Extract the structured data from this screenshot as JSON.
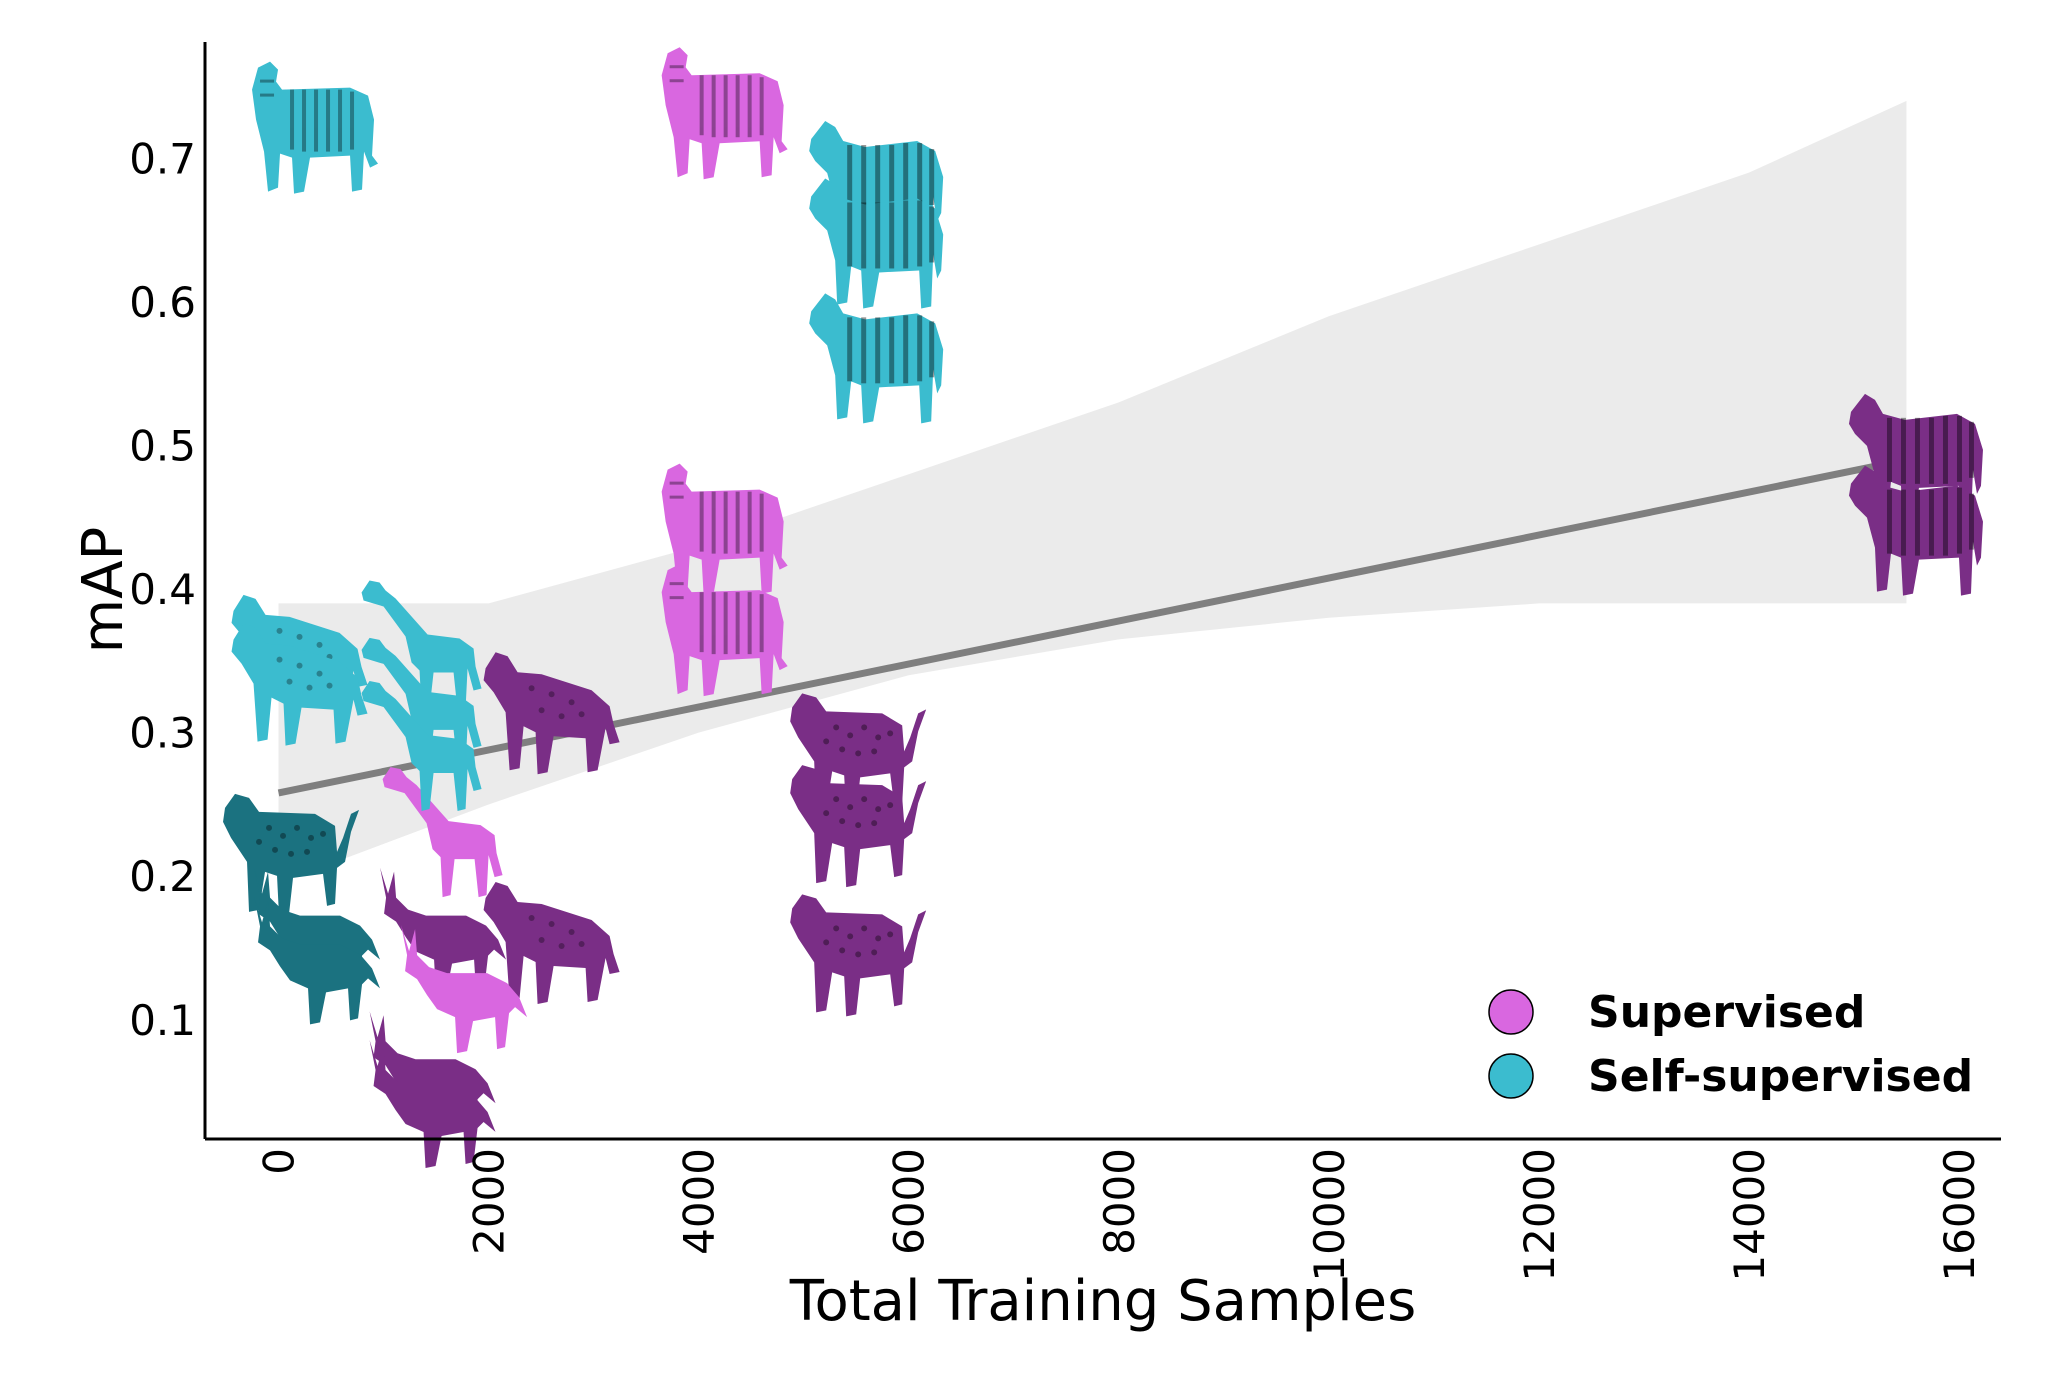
{
  "chart_data": {
    "type": "scatter",
    "title": "",
    "xlabel": "Total Training Samples",
    "ylabel": "mAP",
    "xlim": [
      -700,
      16400
    ],
    "ylim": [
      0.017,
      0.781
    ],
    "x_ticks": [
      0,
      2000,
      4000,
      6000,
      8000,
      10000,
      12000,
      14000,
      16000
    ],
    "x_tick_labels": [
      "0",
      "2000",
      "4000",
      "6000",
      "8000",
      "10000",
      "12000",
      "14000",
      "16000"
    ],
    "y_ticks": [
      0.1,
      0.2,
      0.3,
      0.4,
      0.5,
      0.6,
      0.7
    ],
    "y_tick_labels": [
      "0.1",
      "0.2",
      "0.3",
      "0.4",
      "0.5",
      "0.6",
      "0.7"
    ],
    "grid": false,
    "legend_position": "bottom-right",
    "colors": {
      "Supervised": "#d967e0",
      "Self-supervised": "#3bbccf",
      "Supervised_dark": "#7a2e86",
      "Self-supervised_dark": "#1b7280",
      "regression": "#7f7f7f",
      "confidence_band": "#ebebeb"
    },
    "series": [
      {
        "name": "Supervised",
        "points": [
          {
            "x": 4200,
            "y": 0.73,
            "icon": "tiger-icon",
            "tone": "light"
          },
          {
            "x": 4200,
            "y": 0.44,
            "icon": "tiger-icon",
            "tone": "light"
          },
          {
            "x": 4200,
            "y": 0.37,
            "icon": "tiger-icon",
            "tone": "light"
          },
          {
            "x": 15600,
            "y": 0.49,
            "icon": "zebra-icon",
            "tone": "dark"
          },
          {
            "x": 15600,
            "y": 0.44,
            "icon": "zebra-icon",
            "tone": "dark"
          },
          {
            "x": 5500,
            "y": 0.28,
            "icon": "leopard-icon",
            "tone": "dark"
          },
          {
            "x": 5500,
            "y": 0.23,
            "icon": "leopard-icon",
            "tone": "dark"
          },
          {
            "x": 5500,
            "y": 0.14,
            "icon": "leopard-icon",
            "tone": "dark"
          },
          {
            "x": 2600,
            "y": 0.31,
            "icon": "hyena-icon",
            "tone": "dark"
          },
          {
            "x": 2600,
            "y": 0.15,
            "icon": "hyena-icon",
            "tone": "dark"
          },
          {
            "x": 1600,
            "y": 0.23,
            "icon": "giraffe-icon",
            "tone": "light"
          },
          {
            "x": 1500,
            "y": 0.16,
            "icon": "antelope-icon",
            "tone": "dark"
          },
          {
            "x": 1700,
            "y": 0.12,
            "icon": "antelope-icon",
            "tone": "light"
          },
          {
            "x": 1400,
            "y": 0.06,
            "icon": "antelope-icon",
            "tone": "dark"
          },
          {
            "x": 1400,
            "y": 0.04,
            "icon": "antelope-icon",
            "tone": "dark"
          }
        ]
      },
      {
        "name": "Self-supervised",
        "points": [
          {
            "x": 300,
            "y": 0.72,
            "icon": "tiger-icon",
            "tone": "light"
          },
          {
            "x": 5700,
            "y": 0.68,
            "icon": "zebra-icon",
            "tone": "light"
          },
          {
            "x": 5700,
            "y": 0.64,
            "icon": "zebra-icon",
            "tone": "light"
          },
          {
            "x": 5700,
            "y": 0.56,
            "icon": "zebra-icon",
            "tone": "light"
          },
          {
            "x": 200,
            "y": 0.35,
            "icon": "hyena-icon",
            "tone": "light"
          },
          {
            "x": 200,
            "y": 0.33,
            "icon": "hyena-icon",
            "tone": "light"
          },
          {
            "x": 1400,
            "y": 0.36,
            "icon": "giraffe-icon",
            "tone": "light"
          },
          {
            "x": 1400,
            "y": 0.32,
            "icon": "giraffe-icon",
            "tone": "light"
          },
          {
            "x": 1400,
            "y": 0.29,
            "icon": "giraffe-icon",
            "tone": "light"
          },
          {
            "x": 100,
            "y": 0.21,
            "icon": "leopard-icon",
            "tone": "dark"
          },
          {
            "x": 300,
            "y": 0.16,
            "icon": "antelope-icon",
            "tone": "dark"
          },
          {
            "x": 300,
            "y": 0.14,
            "icon": "antelope-icon",
            "tone": "dark"
          }
        ]
      }
    ],
    "regression": {
      "x_start": 0,
      "x_end": 15500,
      "y_start": 0.258,
      "y_end": 0.49
    },
    "confidence_band": {
      "x": [
        0,
        2000,
        4000,
        6000,
        8000,
        10000,
        12000,
        14000,
        15500
      ],
      "upper": [
        0.39,
        0.39,
        0.43,
        0.48,
        0.53,
        0.59,
        0.64,
        0.69,
        0.74
      ],
      "lower": [
        0.195,
        0.25,
        0.3,
        0.34,
        0.365,
        0.38,
        0.39,
        0.39,
        0.39
      ]
    },
    "legend": [
      {
        "label": "Supervised",
        "color": "#d967e0"
      },
      {
        "label": "Self-supervised",
        "color": "#3bbccf"
      }
    ]
  }
}
